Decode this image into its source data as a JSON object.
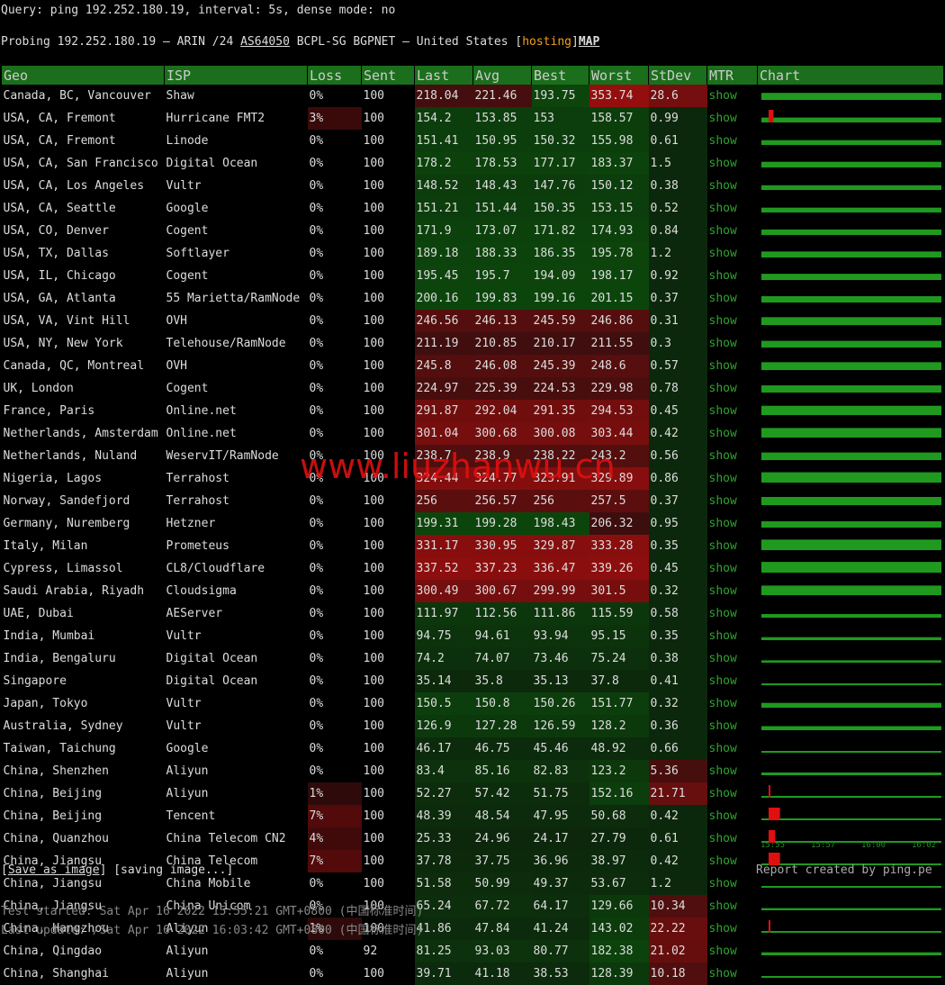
{
  "header": {
    "query": "Query: ping 192.252.180.19, interval: 5s, dense mode: no",
    "probing": [
      "Probing 192.252.180.19 — ARIN /24 ",
      "AS64050",
      " BCPL-SG BGPNET — United States [",
      "hosting",
      "]",
      "MAP"
    ]
  },
  "table": {
    "columns": [
      "Geo",
      "ISP",
      "Loss",
      "Sent",
      "Last",
      "Avg",
      "Best",
      "Worst",
      "StDev",
      "MTR",
      "Chart"
    ],
    "rows": [
      [
        "Canada, BC, Vancouver",
        "Shaw",
        "0%",
        "100",
        "218.04",
        "221.46",
        "193.75",
        "353.74",
        "28.6",
        "show"
      ],
      [
        "USA, CA, Fremont",
        "Hurricane FMT2",
        "3%",
        "100",
        "154.2",
        "153.85",
        "153",
        "158.57",
        "0.99",
        "show"
      ],
      [
        "USA, CA, Fremont",
        "Linode",
        "0%",
        "100",
        "151.41",
        "150.95",
        "150.32",
        "155.98",
        "0.61",
        "show"
      ],
      [
        "USA, CA, San Francisco",
        "Digital Ocean",
        "0%",
        "100",
        "178.2",
        "178.53",
        "177.17",
        "183.37",
        "1.5",
        "show"
      ],
      [
        "USA, CA, Los Angeles",
        "Vultr",
        "0%",
        "100",
        "148.52",
        "148.43",
        "147.76",
        "150.12",
        "0.38",
        "show"
      ],
      [
        "USA, CA, Seattle",
        "Google",
        "0%",
        "100",
        "151.21",
        "151.44",
        "150.35",
        "153.15",
        "0.52",
        "show"
      ],
      [
        "USA, CO, Denver",
        "Cogent",
        "0%",
        "100",
        "171.9",
        "173.07",
        "171.82",
        "174.93",
        "0.84",
        "show"
      ],
      [
        "USA, TX, Dallas",
        "Softlayer",
        "0%",
        "100",
        "189.18",
        "188.33",
        "186.35",
        "195.78",
        "1.2",
        "show"
      ],
      [
        "USA, IL, Chicago",
        "Cogent",
        "0%",
        "100",
        "195.45",
        "195.7",
        "194.09",
        "198.17",
        "0.92",
        "show"
      ],
      [
        "USA, GA, Atlanta",
        "55 Marietta/RamNode",
        "0%",
        "100",
        "200.16",
        "199.83",
        "199.16",
        "201.15",
        "0.37",
        "show"
      ],
      [
        "USA, VA, Vint Hill",
        "OVH",
        "0%",
        "100",
        "246.56",
        "246.13",
        "245.59",
        "246.86",
        "0.31",
        "show"
      ],
      [
        "USA, NY, New York",
        "Telehouse/RamNode",
        "0%",
        "100",
        "211.19",
        "210.85",
        "210.17",
        "211.55",
        "0.3",
        "show"
      ],
      [
        "Canada, QC, Montreal",
        "OVH",
        "0%",
        "100",
        "245.8",
        "246.08",
        "245.39",
        "248.6",
        "0.57",
        "show"
      ],
      [
        "UK, London",
        "Cogent",
        "0%",
        "100",
        "224.97",
        "225.39",
        "224.53",
        "229.98",
        "0.78",
        "show"
      ],
      [
        "France, Paris",
        "Online.net",
        "0%",
        "100",
        "291.87",
        "292.04",
        "291.35",
        "294.53",
        "0.45",
        "show"
      ],
      [
        "Netherlands, Amsterdam",
        "Online.net",
        "0%",
        "100",
        "301.04",
        "300.68",
        "300.08",
        "303.44",
        "0.42",
        "show"
      ],
      [
        "Netherlands, Nuland",
        "WeservIT/RamNode",
        "0%",
        "100",
        "238.7",
        "238.9",
        "238.22",
        "243.2",
        "0.56",
        "show"
      ],
      [
        "Nigeria, Lagos",
        "Terrahost",
        "0%",
        "100",
        "324.44",
        "324.77",
        "323.91",
        "329.89",
        "0.86",
        "show"
      ],
      [
        "Norway, Sandefjord",
        "Terrahost",
        "0%",
        "100",
        "256",
        "256.57",
        "256",
        "257.5",
        "0.37",
        "show"
      ],
      [
        "Germany, Nuremberg",
        "Hetzner",
        "0%",
        "100",
        "199.31",
        "199.28",
        "198.43",
        "206.32",
        "0.95",
        "show"
      ],
      [
        "Italy, Milan",
        "Prometeus",
        "0%",
        "100",
        "331.17",
        "330.95",
        "329.87",
        "333.28",
        "0.35",
        "show"
      ],
      [
        "Cypress, Limassol",
        "CL8/Cloudflare",
        "0%",
        "100",
        "337.52",
        "337.23",
        "336.47",
        "339.26",
        "0.45",
        "show"
      ],
      [
        "Saudi Arabia, Riyadh",
        "Cloudsigma",
        "0%",
        "100",
        "300.49",
        "300.67",
        "299.99",
        "301.5",
        "0.32",
        "show"
      ],
      [
        "UAE, Dubai",
        "AEServer",
        "0%",
        "100",
        "111.97",
        "112.56",
        "111.86",
        "115.59",
        "0.58",
        "show"
      ],
      [
        "India, Mumbai",
        "Vultr",
        "0%",
        "100",
        "94.75",
        "94.61",
        "93.94",
        "95.15",
        "0.35",
        "show"
      ],
      [
        "India, Bengaluru",
        "Digital Ocean",
        "0%",
        "100",
        "74.2",
        "74.07",
        "73.46",
        "75.24",
        "0.38",
        "show"
      ],
      [
        "Singapore",
        "Digital Ocean",
        "0%",
        "100",
        "35.14",
        "35.8",
        "35.13",
        "37.8",
        "0.41",
        "show"
      ],
      [
        "Japan, Tokyo",
        "Vultr",
        "0%",
        "100",
        "150.5",
        "150.8",
        "150.26",
        "151.77",
        "0.32",
        "show"
      ],
      [
        "Australia, Sydney",
        "Vultr",
        "0%",
        "100",
        "126.9",
        "127.28",
        "126.59",
        "128.2",
        "0.36",
        "show"
      ],
      [
        "Taiwan, Taichung",
        "Google",
        "0%",
        "100",
        "46.17",
        "46.75",
        "45.46",
        "48.92",
        "0.66",
        "show"
      ],
      [
        "China, Shenzhen",
        "Aliyun",
        "0%",
        "100",
        "83.4",
        "85.16",
        "82.83",
        "123.2",
        "5.36",
        "show"
      ],
      [
        "China, Beijing",
        "Aliyun",
        "1%",
        "100",
        "52.27",
        "57.42",
        "51.75",
        "152.16",
        "21.71",
        "show"
      ],
      [
        "China, Beijing",
        "Tencent",
        "7%",
        "100",
        "48.39",
        "48.54",
        "47.95",
        "50.68",
        "0.42",
        "show"
      ],
      [
        "China, Quanzhou",
        "China Telecom CN2",
        "4%",
        "100",
        "25.33",
        "24.96",
        "24.17",
        "27.79",
        "0.61",
        "show"
      ],
      [
        "China, Jiangsu",
        "China Telecom",
        "7%",
        "100",
        "37.78",
        "37.75",
        "36.96",
        "38.97",
        "0.42",
        "show"
      ],
      [
        "China, Jiangsu",
        "China Mobile",
        "0%",
        "100",
        "51.58",
        "50.99",
        "49.37",
        "53.67",
        "1.2",
        "show"
      ],
      [
        "China, Jiangsu",
        "China Unicom",
        "0%",
        "100",
        "65.24",
        "67.72",
        "64.17",
        "129.66",
        "10.34",
        "show"
      ],
      [
        "China, Hangzhou",
        "Aliyun",
        "1%",
        "100",
        "41.86",
        "47.84",
        "41.24",
        "143.02",
        "22.22",
        "show"
      ],
      [
        "China, Qingdao",
        "Aliyun",
        "0%",
        "92",
        "81.25",
        "93.03",
        "80.77",
        "182.38",
        "21.02",
        "show"
      ],
      [
        "China, Shanghai",
        "Aliyun",
        "0%",
        "100",
        "39.71",
        "41.18",
        "38.53",
        "128.39",
        "10.18",
        "show"
      ]
    ],
    "chart_times": [
      "15:55",
      "15:57",
      "16:00",
      "16:02"
    ]
  },
  "footer": {
    "save": "Save as image",
    "saving": "[saving image...]",
    "report": "Report created by ping.pe",
    "started": "Test started: Sat Apr 16 2022 15:55:21 GMT+0800 (中国标准时间)",
    "updated": "Last update: /Sat Apr 16 2022 16:03:42 GMT+0800 (中国标准时间)"
  },
  "watermark": "www.liuzhanwu.cn"
}
